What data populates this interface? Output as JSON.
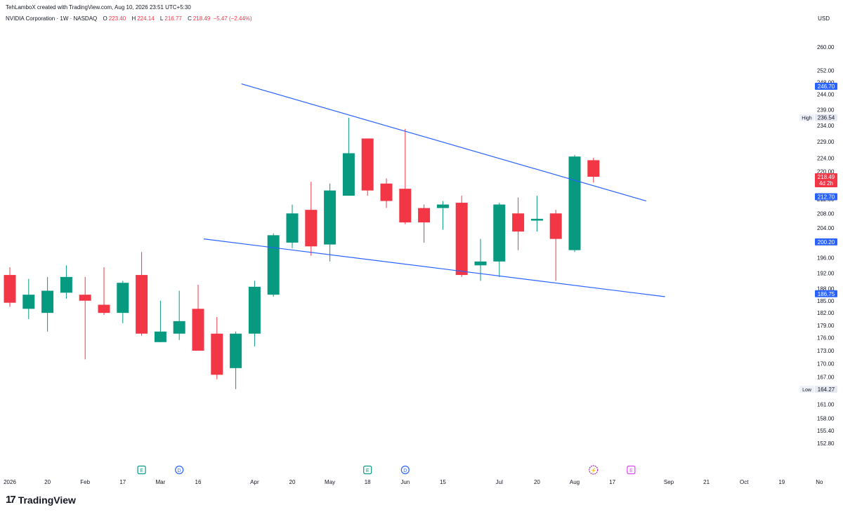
{
  "header": {
    "credit": "TehLamboX created with TradingView.com, Aug 10, 2026 23:51 UTC+5:30",
    "symbol": "NVIDIA Corporation · 1W · NASDAQ",
    "o_label": "O",
    "o_value": "223.40",
    "h_label": "H",
    "h_value": "224.14",
    "l_label": "L",
    "l_value": "216.77",
    "c_label": "C",
    "c_value": "218.49",
    "change": "−5.47 (−2.44%)"
  },
  "currency": "USD",
  "footer": {
    "logo_mark": "17",
    "brand": "TradingView"
  },
  "colors": {
    "up": "#089981",
    "down": "#f23645",
    "trendline": "#2962ff",
    "label_blue": "#2962ff",
    "label_red": "#f23645",
    "text": "#131722"
  },
  "chart_data": {
    "type": "candlestick",
    "interval": "1W",
    "ylim": [
      150.5,
      265.5
    ],
    "y_scale": "log",
    "y_ticks": [
      "260.00",
      "252.00",
      "248.00",
      "244.00",
      "239.00",
      "234.00",
      "229.00",
      "224.00",
      "220.00",
      "216.00",
      "212.00",
      "208.00",
      "204.00",
      "200.00",
      "196.00",
      "192.00",
      "188.00",
      "185.00",
      "182.00",
      "179.00",
      "176.00",
      "173.00",
      "170.00",
      "167.00",
      "164.00",
      "161.00",
      "158.00",
      "155.40",
      "152.80"
    ],
    "x_tick_labels": [
      {
        "i": 0,
        "label": "2026"
      },
      {
        "i": 2,
        "label": "20"
      },
      {
        "i": 4,
        "label": "Feb"
      },
      {
        "i": 6,
        "label": "17"
      },
      {
        "i": 8,
        "label": "Mar"
      },
      {
        "i": 10,
        "label": "16"
      },
      {
        "i": 13,
        "label": "Apr"
      },
      {
        "i": 15,
        "label": "20"
      },
      {
        "i": 17,
        "label": "May"
      },
      {
        "i": 19,
        "label": "18"
      },
      {
        "i": 21,
        "label": "Jun"
      },
      {
        "i": 23,
        "label": "15"
      },
      {
        "i": 26,
        "label": "Jul"
      },
      {
        "i": 28,
        "label": "20"
      },
      {
        "i": 30,
        "label": "Aug"
      },
      {
        "i": 32,
        "label": "17"
      },
      {
        "i": 35,
        "label": "Sep"
      },
      {
        "i": 37,
        "label": "21"
      },
      {
        "i": 39,
        "label": "Oct"
      },
      {
        "i": 41,
        "label": "19"
      },
      {
        "i": 43,
        "label": "No"
      }
    ],
    "candles": [
      {
        "o": 191.5,
        "h": 193.5,
        "l": 183.5,
        "c": 184.5
      },
      {
        "o": 183.0,
        "h": 190.5,
        "l": 180.5,
        "c": 186.5
      },
      {
        "o": 182.0,
        "h": 191.0,
        "l": 177.5,
        "c": 187.5
      },
      {
        "o": 187.0,
        "h": 194.0,
        "l": 185.5,
        "c": 191.0
      },
      {
        "o": 186.5,
        "h": 191.0,
        "l": 171.0,
        "c": 185.0
      },
      {
        "o": 184.0,
        "h": 193.5,
        "l": 181.5,
        "c": 182.0
      },
      {
        "o": 182.0,
        "h": 190.0,
        "l": 179.5,
        "c": 189.5
      },
      {
        "o": 191.5,
        "h": 197.5,
        "l": 176.5,
        "c": 177.0
      },
      {
        "o": 175.0,
        "h": 185.0,
        "l": 175.0,
        "c": 177.5
      },
      {
        "o": 177.0,
        "h": 187.5,
        "l": 175.5,
        "c": 180.0
      },
      {
        "o": 183.0,
        "h": 189.0,
        "l": 173.5,
        "c": 173.0
      },
      {
        "o": 177.0,
        "h": 181.0,
        "l": 166.5,
        "c": 167.5
      },
      {
        "o": 169.0,
        "h": 177.5,
        "l": 164.3,
        "c": 177.0
      },
      {
        "o": 177.0,
        "h": 190.0,
        "l": 174.0,
        "c": 188.5
      },
      {
        "o": 186.5,
        "h": 202.5,
        "l": 186.0,
        "c": 202.0
      },
      {
        "o": 200.0,
        "h": 210.5,
        "l": 198.5,
        "c": 208.0
      },
      {
        "o": 209.0,
        "h": 217.0,
        "l": 196.5,
        "c": 199.0
      },
      {
        "o": 199.5,
        "h": 216.5,
        "l": 195.0,
        "c": 214.5
      },
      {
        "o": 213.0,
        "h": 236.5,
        "l": 213.0,
        "c": 225.5
      },
      {
        "o": 230.0,
        "h": 230.0,
        "l": 213.0,
        "c": 214.5
      },
      {
        "o": 216.5,
        "h": 218.0,
        "l": 209.5,
        "c": 211.5
      },
      {
        "o": 215.0,
        "h": 233.0,
        "l": 205.0,
        "c": 205.5
      },
      {
        "o": 209.5,
        "h": 210.5,
        "l": 200.0,
        "c": 205.5
      },
      {
        "o": 209.5,
        "h": 211.5,
        "l": 203.5,
        "c": 210.5
      },
      {
        "o": 211.0,
        "h": 213.0,
        "l": 191.0,
        "c": 191.5
      },
      {
        "o": 194.0,
        "h": 201.0,
        "l": 190.0,
        "c": 195.0
      },
      {
        "o": 195.0,
        "h": 211.0,
        "l": 191.0,
        "c": 210.5
      },
      {
        "o": 208.0,
        "h": 212.5,
        "l": 198.0,
        "c": 203.0
      },
      {
        "o": 206.0,
        "h": 213.0,
        "l": 203.0,
        "c": 206.5
      },
      {
        "o": 208.0,
        "h": 209.0,
        "l": 190.0,
        "c": 201.0
      },
      {
        "o": 198.0,
        "h": 225.0,
        "l": 197.5,
        "c": 224.5
      },
      {
        "o": 223.4,
        "h": 224.14,
        "l": 216.77,
        "c": 218.49
      }
    ],
    "trendlines": [
      {
        "from": {
          "i": 12.3,
          "p": 247.5
        },
        "to": {
          "i": 33.8,
          "p": 211.5
        }
      },
      {
        "from": {
          "i": 10.3,
          "p": 201.0
        },
        "to": {
          "i": 34.8,
          "p": 186.0
        }
      }
    ],
    "price_labels": [
      {
        "p": 246.7,
        "text": "246.70",
        "color": "#2962ff"
      },
      {
        "p": 212.7,
        "text": "212.70",
        "color": "#2962ff"
      },
      {
        "p": 200.2,
        "text": "200.20",
        "color": "#2962ff"
      },
      {
        "p": 186.75,
        "text": "186.75",
        "color": "#2962ff"
      }
    ],
    "last_price": {
      "p": 218.49,
      "text": "218.49",
      "countdown": "4d 2h",
      "color": "#f23645"
    },
    "high": {
      "tag": "High",
      "p": 236.54,
      "text": "236.54"
    },
    "low": {
      "tag": "Low",
      "p": 164.27,
      "text": "164.27"
    },
    "events": [
      {
        "i": 7,
        "type": "E",
        "color": "#089981"
      },
      {
        "i": 9,
        "type": "D",
        "color": "#2962ff"
      },
      {
        "i": 19,
        "type": "E",
        "color": "#089981"
      },
      {
        "i": 21,
        "type": "D",
        "color": "#2962ff"
      },
      {
        "i": 31,
        "type": "⚡",
        "color": "#9c27b0"
      },
      {
        "i": 33,
        "type": "E",
        "color": "#e040fb"
      }
    ]
  }
}
